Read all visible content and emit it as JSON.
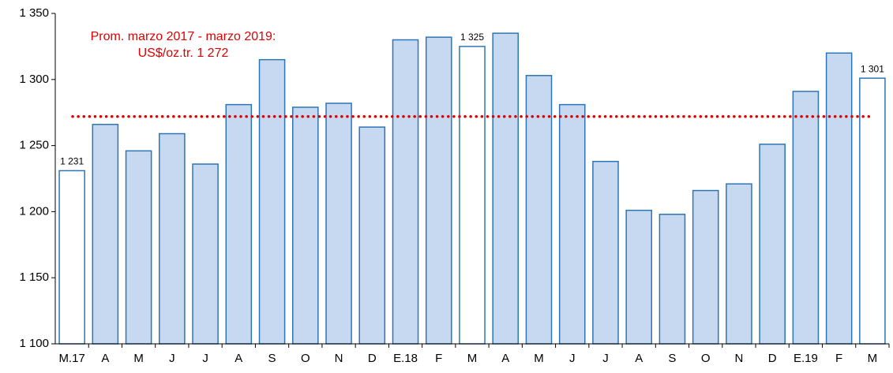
{
  "chart_data": {
    "type": "bar",
    "categories": [
      "M.17",
      "A",
      "M",
      "J",
      "J",
      "A",
      "S",
      "O",
      "N",
      "D",
      "E.18",
      "F",
      "M",
      "A",
      "M",
      "J",
      "J",
      "A",
      "S",
      "O",
      "N",
      "D",
      "E.19",
      "F",
      "M"
    ],
    "values": [
      1231,
      1266,
      1246,
      1259,
      1236,
      1281,
      1315,
      1279,
      1282,
      1264,
      1330,
      1332,
      1325,
      1335,
      1303,
      1281,
      1238,
      1201,
      1198,
      1216,
      1221,
      1251,
      1291,
      1320,
      1301
    ],
    "value_labels": [
      "1 231",
      null,
      null,
      null,
      null,
      null,
      null,
      null,
      null,
      null,
      null,
      null,
      "1 325",
      null,
      null,
      null,
      null,
      null,
      null,
      null,
      null,
      null,
      null,
      null,
      "1 301"
    ],
    "colors": [
      "#ffffff",
      "#c6d9f1",
      "#c6d9f1",
      "#c6d9f1",
      "#c6d9f1",
      "#c6d9f1",
      "#c6d9f1",
      "#c6d9f1",
      "#c6d9f1",
      "#c6d9f1",
      "#c6d9f1",
      "#c6d9f1",
      "#ffffff",
      "#c6d9f1",
      "#c6d9f1",
      "#c6d9f1",
      "#c6d9f1",
      "#c6d9f1",
      "#c6d9f1",
      "#c6d9f1",
      "#c6d9f1",
      "#c6d9f1",
      "#c6d9f1",
      "#c6d9f1",
      "#ffffff"
    ],
    "edge_color": "#2e75b6",
    "ylim": [
      1100,
      1350
    ],
    "yticks": [
      {
        "value": 1100,
        "label": "1 100"
      },
      {
        "value": 1150,
        "label": "1 150"
      },
      {
        "value": 1200,
        "label": "1 200"
      },
      {
        "value": 1250,
        "label": "1 250"
      },
      {
        "value": 1300,
        "label": "1 300"
      },
      {
        "value": 1350,
        "label": "1 350"
      }
    ],
    "average": 1272,
    "average_color": "#e00000",
    "annotation": [
      "Prom. marzo 2017 - marzo 2019:",
      "US$/oz.tr. 1 272"
    ]
  }
}
